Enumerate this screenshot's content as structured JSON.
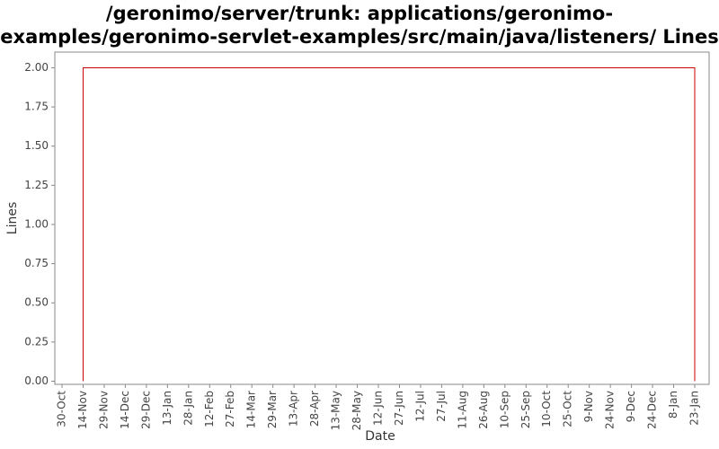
{
  "chart_data": {
    "type": "line",
    "title": "/geronimo/server/trunk: applications/geronimo-examples/geronimo-servlet-examples/src/main/java/listeners/ Lines of Code",
    "x_label": "Date",
    "y_label": "Lines",
    "xticks": [
      "30-Oct",
      "14-Nov",
      "29-Nov",
      "14-Dec",
      "29-Dec",
      "13-Jan",
      "28-Jan",
      "12-Feb",
      "27-Feb",
      "14-Mar",
      "29-Mar",
      "13-Apr",
      "28-Apr",
      "13-May",
      "28-May",
      "12-Jun",
      "27-Jun",
      "12-Jul",
      "27-Jul",
      "11-Aug",
      "26-Aug",
      "10-Sep",
      "25-Sep",
      "10-Oct",
      "25-Oct",
      "9-Nov",
      "24-Nov",
      "9-Dec",
      "24-Dec",
      "8-Jan",
      "23-Jan"
    ],
    "x": [
      "14-Nov",
      "14-Nov",
      "23-Jan",
      "23-Jan"
    ],
    "series": [
      {
        "name": "Lines",
        "color": "#cc0000",
        "values": [
          0,
          2,
          2,
          0
        ]
      }
    ],
    "ylim": [
      -0.02,
      2.1
    ],
    "yticks": [
      {
        "value": 0,
        "label": "0.00"
      },
      {
        "value": 0.25,
        "label": "0.25"
      },
      {
        "value": 0.5,
        "label": "0.50"
      },
      {
        "value": 0.75,
        "label": "0.75"
      },
      {
        "value": 1,
        "label": "1.00"
      },
      {
        "value": 1.25,
        "label": "1.25"
      },
      {
        "value": 1.5,
        "label": "1.50"
      },
      {
        "value": 1.75,
        "label": "1.75"
      },
      {
        "value": 2,
        "label": "2.00"
      }
    ],
    "grid": false
  }
}
